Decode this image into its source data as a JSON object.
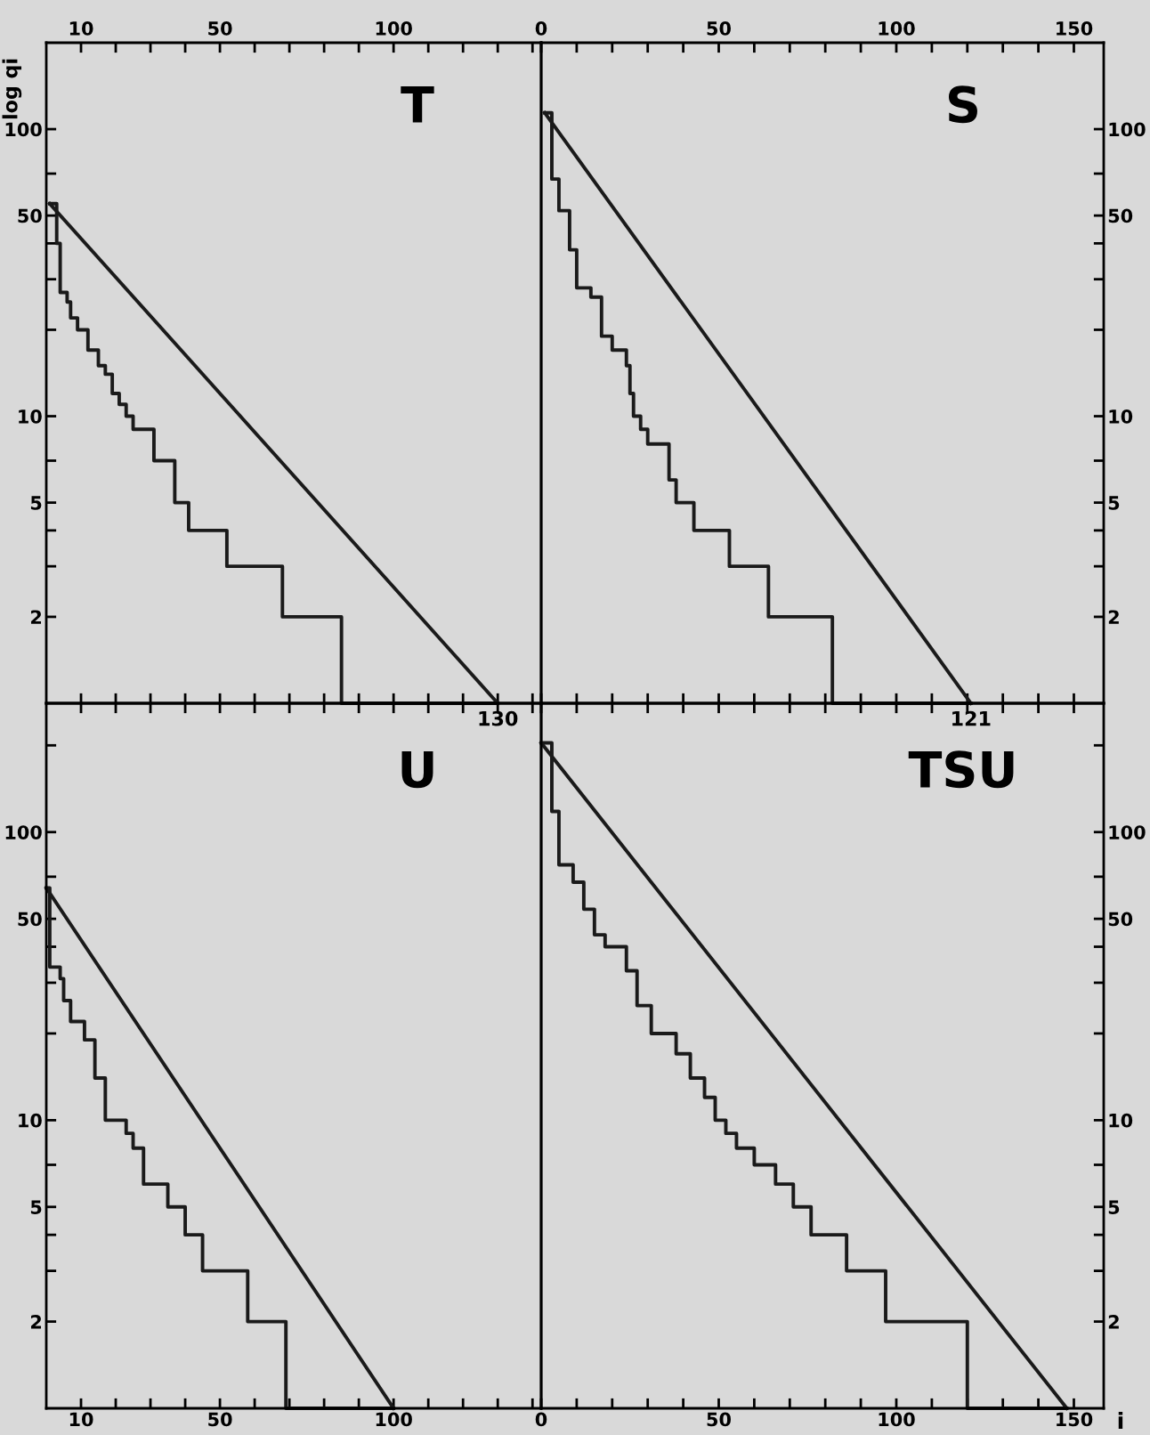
{
  "chart_data": [
    {
      "type": "step",
      "title": "T",
      "ylabel": "log qi",
      "log": true,
      "xlim": [
        0,
        142.5
      ],
      "ylim": [
        1,
        200
      ],
      "xticks": [
        10,
        {
          "value": 20,
          "label": null
        },
        {
          "value": 30,
          "label": null
        },
        {
          "value": 40,
          "label": null
        },
        50,
        {
          "value": 60,
          "label": null
        },
        {
          "value": 70,
          "label": null
        },
        {
          "value": 80,
          "label": null
        },
        {
          "value": 90,
          "label": null
        },
        100,
        {
          "value": 110,
          "label": null
        },
        {
          "value": 120,
          "label": null
        },
        {
          "value": 130,
          "label": null
        },
        {
          "value": 140,
          "label": null
        }
      ],
      "yticks": [
        2,
        {
          "value": 3,
          "label": null
        },
        {
          "value": 4,
          "label": null
        },
        5,
        {
          "value": 7,
          "label": null
        },
        10,
        {
          "value": 20,
          "label": null
        },
        {
          "value": 30,
          "label": null
        },
        {
          "value": 40,
          "label": null
        },
        50,
        {
          "value": 70,
          "label": null
        },
        100
      ],
      "annotations": [
        {
          "text": "130",
          "x": 130,
          "y": 1
        }
      ],
      "series": [
        {
          "color": "#1a1a1a",
          "x": [
            1,
            3,
            4,
            6,
            7,
            9,
            12,
            15,
            17,
            19,
            21,
            23,
            25,
            31,
            37,
            41,
            52,
            68,
            85,
            130
          ],
          "values": [
            55,
            40,
            27,
            25,
            22,
            20,
            17,
            15,
            14,
            12,
            11,
            10,
            9,
            7,
            5,
            4,
            3,
            2,
            1,
            1
          ]
        },
        {
          "type": "line",
          "color": "#1a1a1a",
          "x": [
            1,
            130
          ],
          "values": [
            55,
            1
          ]
        }
      ]
    },
    {
      "type": "step",
      "title": "S",
      "log": true,
      "xlim": [
        0,
        158.4
      ],
      "ylim": [
        1,
        200
      ],
      "xticks": [
        0,
        {
          "value": 10,
          "label": null
        },
        {
          "value": 20,
          "label": null
        },
        {
          "value": 30,
          "label": null
        },
        {
          "value": 40,
          "label": null
        },
        50,
        {
          "value": 60,
          "label": null
        },
        {
          "value": 70,
          "label": null
        },
        {
          "value": 80,
          "label": null
        },
        {
          "value": 90,
          "label": null
        },
        100,
        {
          "value": 110,
          "label": null
        },
        {
          "value": 120,
          "label": null
        },
        {
          "value": 130,
          "label": null
        },
        {
          "value": 140,
          "label": null
        },
        150
      ],
      "yticks": [
        2,
        {
          "value": 3,
          "label": null
        },
        {
          "value": 4,
          "label": null
        },
        5,
        {
          "value": 7,
          "label": null
        },
        10,
        {
          "value": 20,
          "label": null
        },
        {
          "value": 30,
          "label": null
        },
        {
          "value": 40,
          "label": null
        },
        50,
        {
          "value": 70,
          "label": null
        },
        100
      ],
      "annotations": [
        {
          "text": "121",
          "x": 121,
          "y": 1
        }
      ],
      "series": [
        {
          "color": "#1a1a1a",
          "x": [
            1,
            3,
            5,
            8,
            10,
            14,
            17,
            20,
            24,
            25,
            26,
            28,
            30,
            36,
            38,
            43,
            53,
            64,
            82,
            121
          ],
          "values": [
            114,
            67,
            52,
            38,
            28,
            26,
            19,
            17,
            15,
            12,
            10,
            9,
            8,
            6,
            5,
            4,
            3,
            2,
            1,
            1
          ]
        },
        {
          "type": "line",
          "color": "#1a1a1a",
          "x": [
            1,
            121
          ],
          "values": [
            114,
            1
          ]
        }
      ]
    },
    {
      "type": "step",
      "title": "U",
      "log": true,
      "xlim": [
        0,
        142.5
      ],
      "ylim": [
        1,
        280
      ],
      "xticks": [
        10,
        {
          "value": 20,
          "label": null
        },
        {
          "value": 30,
          "label": null
        },
        {
          "value": 40,
          "label": null
        },
        50,
        {
          "value": 60,
          "label": null
        },
        {
          "value": 70,
          "label": null
        },
        {
          "value": 80,
          "label": null
        },
        {
          "value": 90,
          "label": null
        },
        100,
        {
          "value": 110,
          "label": null
        },
        {
          "value": 120,
          "label": null
        },
        {
          "value": 130,
          "label": null
        },
        {
          "value": 140,
          "label": null
        }
      ],
      "yticks": [
        2,
        {
          "value": 3,
          "label": null
        },
        {
          "value": 4,
          "label": null
        },
        5,
        {
          "value": 7,
          "label": null
        },
        10,
        {
          "value": 20,
          "label": null
        },
        {
          "value": 30,
          "label": null
        },
        {
          "value": 40,
          "label": null
        },
        50,
        {
          "value": 70,
          "label": null
        },
        100,
        {
          "value": 200,
          "label": null
        }
      ],
      "series": [
        {
          "color": "#1a1a1a",
          "x": [
            0,
            1,
            4,
            5,
            7,
            11,
            14,
            17,
            23,
            25,
            28,
            35,
            40,
            45,
            58,
            69,
            100
          ],
          "values": [
            64,
            34,
            31,
            26,
            22,
            19,
            14,
            10,
            9,
            8,
            6,
            5,
            4,
            3,
            2,
            1,
            1
          ]
        },
        {
          "type": "line",
          "color": "#1a1a1a",
          "x": [
            0,
            100
          ],
          "values": [
            64,
            1
          ]
        }
      ]
    },
    {
      "type": "step",
      "title": "TSU",
      "xlabel": "i",
      "log": true,
      "xlim": [
        0,
        158.4
      ],
      "ylim": [
        1,
        280
      ],
      "xticks": [
        0,
        {
          "value": 10,
          "label": null
        },
        {
          "value": 20,
          "label": null
        },
        {
          "value": 30,
          "label": null
        },
        {
          "value": 40,
          "label": null
        },
        50,
        {
          "value": 60,
          "label": null
        },
        {
          "value": 70,
          "label": null
        },
        {
          "value": 80,
          "label": null
        },
        {
          "value": 90,
          "label": null
        },
        100,
        {
          "value": 110,
          "label": null
        },
        {
          "value": 120,
          "label": null
        },
        {
          "value": 130,
          "label": null
        },
        {
          "value": 140,
          "label": null
        },
        150
      ],
      "yticks": [
        2,
        {
          "value": 3,
          "label": null
        },
        {
          "value": 4,
          "label": null
        },
        5,
        {
          "value": 7,
          "label": null
        },
        10,
        {
          "value": 20,
          "label": null
        },
        {
          "value": 30,
          "label": null
        },
        {
          "value": 40,
          "label": null
        },
        50,
        {
          "value": 70,
          "label": null
        },
        100,
        {
          "value": 200,
          "label": null
        }
      ],
      "series": [
        {
          "color": "#1a1a1a",
          "x": [
            0,
            3,
            5,
            9,
            12,
            15,
            18,
            24,
            27,
            31,
            38,
            42,
            46,
            49,
            52,
            55,
            60,
            66,
            71,
            76,
            86,
            97,
            120,
            148
          ],
          "values": [
            204,
            118,
            77,
            67,
            54,
            44,
            40,
            33,
            25,
            20,
            17,
            14,
            12,
            10,
            9,
            8,
            7,
            6,
            5,
            4,
            3,
            2,
            1,
            1
          ]
        },
        {
          "type": "line",
          "color": "#1a1a1a",
          "x": [
            0,
            148
          ],
          "values": [
            204,
            1
          ]
        }
      ]
    }
  ]
}
